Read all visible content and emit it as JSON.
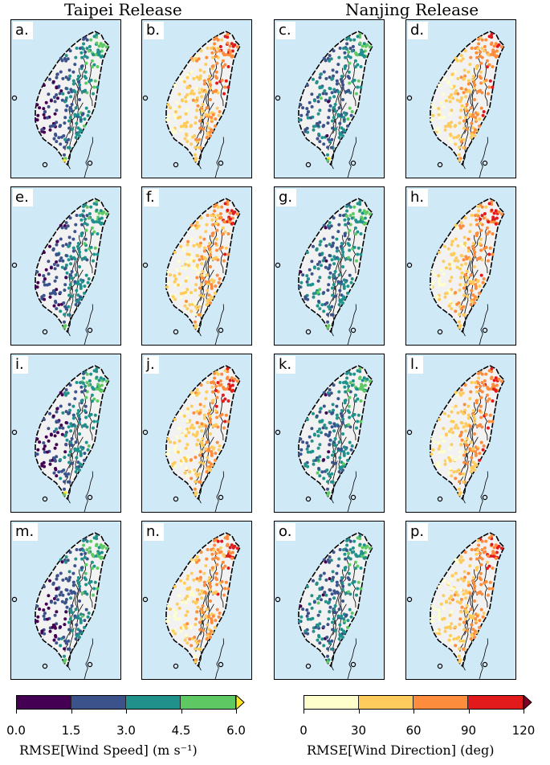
{
  "titles": {
    "left": "Taipei Release",
    "right": "Nanjing Release"
  },
  "panels": [
    {
      "label": "a.",
      "variable": "speed",
      "release": "Taipei"
    },
    {
      "label": "b.",
      "variable": "direction",
      "release": "Taipei"
    },
    {
      "label": "c.",
      "variable": "speed",
      "release": "Nanjing"
    },
    {
      "label": "d.",
      "variable": "direction",
      "release": "Nanjing"
    },
    {
      "label": "e.",
      "variable": "speed",
      "release": "Taipei"
    },
    {
      "label": "f.",
      "variable": "direction",
      "release": "Taipei"
    },
    {
      "label": "g.",
      "variable": "speed",
      "release": "Nanjing"
    },
    {
      "label": "h.",
      "variable": "direction",
      "release": "Nanjing"
    },
    {
      "label": "i.",
      "variable": "speed",
      "release": "Taipei"
    },
    {
      "label": "j.",
      "variable": "direction",
      "release": "Taipei"
    },
    {
      "label": "k.",
      "variable": "speed",
      "release": "Nanjing"
    },
    {
      "label": "l.",
      "variable": "direction",
      "release": "Nanjing"
    },
    {
      "label": "m.",
      "variable": "speed",
      "release": "Taipei"
    },
    {
      "label": "n.",
      "variable": "direction",
      "release": "Taipei"
    },
    {
      "label": "o.",
      "variable": "speed",
      "release": "Nanjing"
    },
    {
      "label": "p.",
      "variable": "direction",
      "release": "Nanjing"
    }
  ],
  "colorbars": {
    "speed": {
      "label": "RMSE[Wind Speed] (m s⁻¹)",
      "ticks": [
        "0.0",
        "1.5",
        "3.0",
        "4.5",
        "6.0"
      ],
      "colors": [
        "#440154",
        "#3b528b",
        "#21918c",
        "#5ec962",
        "#fde725"
      ],
      "extend": "max"
    },
    "direction": {
      "label": "RMSE[Wind Direction] (deg)",
      "ticks": [
        "0",
        "30",
        "60",
        "90",
        "120"
      ],
      "colors": [
        "#ffffcc",
        "#fecc5c",
        "#fd8d3c",
        "#e31a1c",
        "#800026"
      ],
      "extend": "max"
    }
  },
  "map_colors": {
    "ocean": "#d0e9f6",
    "land": "#f2f2f2",
    "outline": "#000000"
  }
}
